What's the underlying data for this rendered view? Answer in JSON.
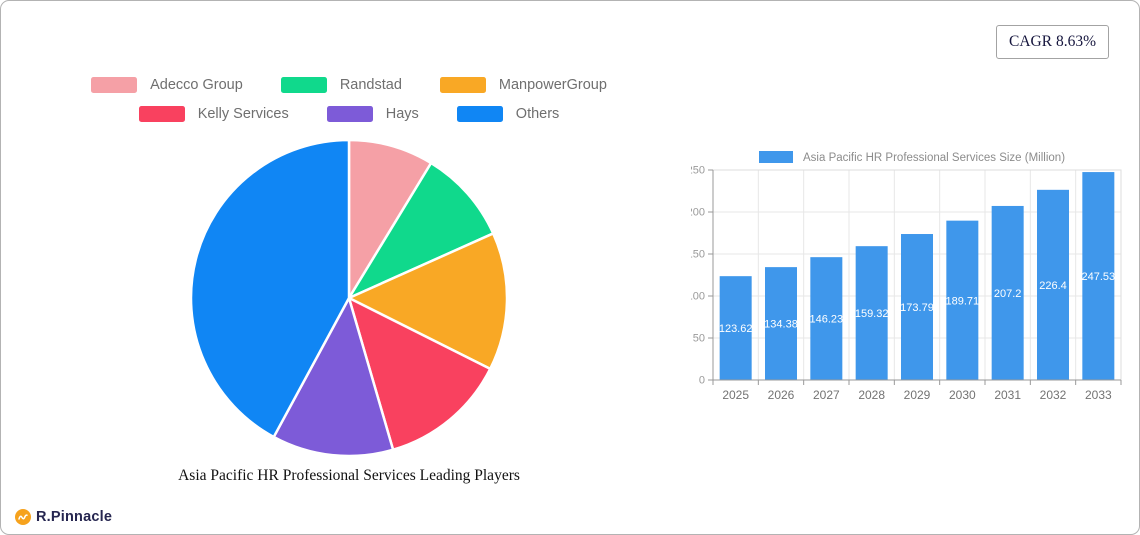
{
  "page": {
    "cagr_badge": "CAGR 8.63%",
    "brand": "R.Pinnacle"
  },
  "chart_data": [
    {
      "type": "pie",
      "title": "Asia Pacific HR Professional Services Leading Players",
      "labels": [
        "Adecco Group",
        "Randstad",
        "ManpowerGroup",
        "Kelly Services",
        "Hays",
        "Others"
      ],
      "values": [
        8.7,
        9.6,
        14.1,
        13.1,
        12.4,
        42.1
      ],
      "colors": [
        "#f5a0a6",
        "#10d98c",
        "#f9a825",
        "#f9415f",
        "#7d5bd8",
        "#1086f4"
      ],
      "start_angle_deg": 0,
      "direction": "clockwise",
      "legend_position": "top"
    },
    {
      "type": "bar",
      "legend": "Asia Pacific HR Professional Services Size (Million)",
      "categories": [
        "2025",
        "2026",
        "2027",
        "2028",
        "2029",
        "2030",
        "2031",
        "2032",
        "2033"
      ],
      "values": [
        123.62,
        134.38,
        146.23,
        159.32,
        173.79,
        189.71,
        207.2,
        226.4,
        247.53
      ],
      "value_labels": [
        "123.62",
        "134.38",
        "146.23",
        "159.32",
        "173.79",
        "189.71",
        "207.2",
        "226.4",
        "247.53"
      ],
      "ylim": [
        0,
        250
      ],
      "yticks": [
        0,
        50,
        100,
        150,
        200,
        250
      ],
      "bar_color": "#3f97eb",
      "grid": true
    }
  ]
}
